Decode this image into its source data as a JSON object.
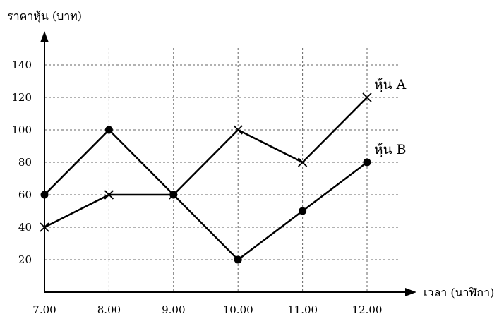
{
  "chart_data": {
    "type": "line",
    "ylabel": "ราคาหุ้น (บาท)",
    "xlabel": "เวลา (นาฬิกา)",
    "x": [
      "7.00",
      "8.00",
      "9.00",
      "10.00",
      "11.00",
      "12.00"
    ],
    "xlim": [
      "7.00",
      "12.00"
    ],
    "ylim": [
      0,
      150
    ],
    "yticks": [
      20,
      40,
      60,
      80,
      100,
      120,
      140
    ],
    "grid": true,
    "series": [
      {
        "name": "หุ้น A",
        "marker": "cross",
        "values": [
          40,
          60,
          60,
          100,
          80,
          120
        ]
      },
      {
        "name": "หุ้น B",
        "marker": "dot",
        "values": [
          60,
          100,
          60,
          20,
          50,
          80
        ]
      }
    ]
  }
}
